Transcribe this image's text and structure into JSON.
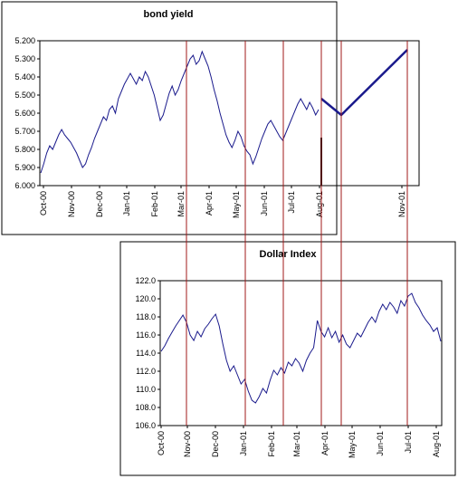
{
  "chart_data": [
    {
      "type": "line",
      "title": "bond yield",
      "ylim": [
        6.0,
        5.2
      ],
      "y_reversed": true,
      "y_ticks": [
        "5.200",
        "5.300",
        "5.400",
        "5.500",
        "5.600",
        "5.700",
        "5.800",
        "5.900",
        "6.000"
      ],
      "x_ticks": [
        "Oct-00",
        "Nov-00",
        "Dec-00",
        "Jan-01",
        "Feb-01",
        "Mar-01",
        "Apr-01",
        "May-01",
        "Jun-01",
        "Jul-01",
        "Aug-01",
        "Nov-01"
      ],
      "grid": false,
      "series": [
        {
          "values": [
            5.93,
            5.88,
            5.82,
            5.78,
            5.8,
            5.76,
            5.72,
            5.69,
            5.72,
            5.74,
            5.76,
            5.79,
            5.82,
            5.86,
            5.9,
            5.88,
            5.83,
            5.79,
            5.74,
            5.7,
            5.66,
            5.62,
            5.64,
            5.58,
            5.56,
            5.6,
            5.52,
            5.48,
            5.44,
            5.41,
            5.38,
            5.41,
            5.44,
            5.4,
            5.42,
            5.37,
            5.4,
            5.45,
            5.5,
            5.57,
            5.64,
            5.61,
            5.55,
            5.49,
            5.45,
            5.5,
            5.47,
            5.42,
            5.38,
            5.34,
            5.3,
            5.28,
            5.33,
            5.31,
            5.26,
            5.3,
            5.34,
            5.4,
            5.47,
            5.53,
            5.6,
            5.66,
            5.72,
            5.76,
            5.79,
            5.75,
            5.7,
            5.73,
            5.78,
            5.81,
            5.83,
            5.88,
            5.84,
            5.79,
            5.74,
            5.7,
            5.66,
            5.64,
            5.67,
            5.7,
            5.73,
            5.75,
            5.71,
            5.67,
            5.63,
            5.59,
            5.55,
            5.52,
            5.55,
            5.58,
            5.54,
            5.57,
            5.61,
            5.58
          ],
          "color": "#1a1a8c"
        },
        {
          "name": "",
          "points": [
            [
              "Aug-01",
              5.52
            ],
            [
              "Aug-01+",
              5.61
            ],
            [
              "Nov-01",
              5.25
            ]
          ],
          "values": [
            5.52,
            5.61,
            5.25
          ],
          "color": "#1a1a8c"
        }
      ]
    },
    {
      "type": "line",
      "title": "Dollar Index",
      "ylim": [
        106.0,
        122.0
      ],
      "y_ticks": [
        "106.0",
        "108.0",
        "110.0",
        "112.0",
        "114.0",
        "116.0",
        "118.0",
        "120.0",
        "122.0"
      ],
      "x_ticks": [
        "Oct-00",
        "Nov-00",
        "Dec-00",
        "Jan-01",
        "Feb-01",
        "Mar-01",
        "Apr-01",
        "May-01",
        "Jun-01",
        "Jul-01",
        "Aug-01"
      ],
      "grid": false,
      "series": [
        {
          "values": [
            114.2,
            114.8,
            115.6,
            116.3,
            117.0,
            117.6,
            118.2,
            117.4,
            116.0,
            115.4,
            116.4,
            115.8,
            116.7,
            117.2,
            117.8,
            118.3,
            117.0,
            115.0,
            113.2,
            112.0,
            112.6,
            111.6,
            110.6,
            111.1,
            109.8,
            108.8,
            108.5,
            109.2,
            110.1,
            109.6,
            111.0,
            112.1,
            111.6,
            112.4,
            111.8,
            113.0,
            112.6,
            113.4,
            112.9,
            112.0,
            113.2,
            114.0,
            114.6,
            117.6,
            116.4,
            115.8,
            116.8,
            115.7,
            116.4,
            115.2,
            116.0,
            115.0,
            114.6,
            115.4,
            116.2,
            115.8,
            116.6,
            117.4,
            118.0,
            117.4,
            118.6,
            119.4,
            118.8,
            119.6,
            119.1,
            118.4,
            119.8,
            119.2,
            120.3,
            120.6,
            119.6,
            119.0,
            118.2,
            117.6,
            117.1,
            116.4,
            116.8,
            115.3
          ],
          "color": "#1a1a8c"
        }
      ]
    }
  ]
}
